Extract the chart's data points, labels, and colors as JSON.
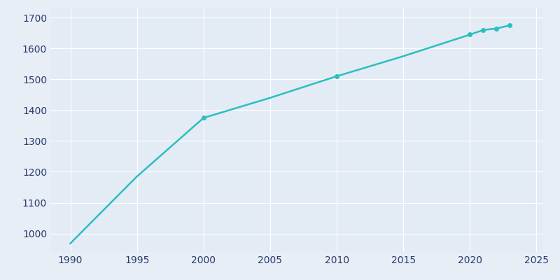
{
  "years": [
    1990,
    1995,
    2000,
    2005,
    2010,
    2015,
    2020,
    2021,
    2022,
    2023
  ],
  "population": [
    968,
    1185,
    1375,
    1440,
    1510,
    1575,
    1645,
    1660,
    1665,
    1675
  ],
  "marker_years": [
    2000,
    2010,
    2020,
    2021,
    2022,
    2023
  ],
  "marker_pop": [
    1375,
    1510,
    1645,
    1660,
    1665,
    1675
  ],
  "line_color": "#2bbfbf",
  "bg_color": "#E8EEF6",
  "plot_bg_color": "#E3EBF5",
  "tick_color": "#2B3A6B",
  "grid_color": "#ffffff",
  "xlim": [
    1988.5,
    2025.5
  ],
  "ylim": [
    940,
    1730
  ],
  "xticks": [
    1990,
    1995,
    2000,
    2005,
    2010,
    2015,
    2020,
    2025
  ],
  "yticks": [
    1000,
    1100,
    1200,
    1300,
    1400,
    1500,
    1600,
    1700
  ],
  "marker_size": 4,
  "line_width": 1.8
}
